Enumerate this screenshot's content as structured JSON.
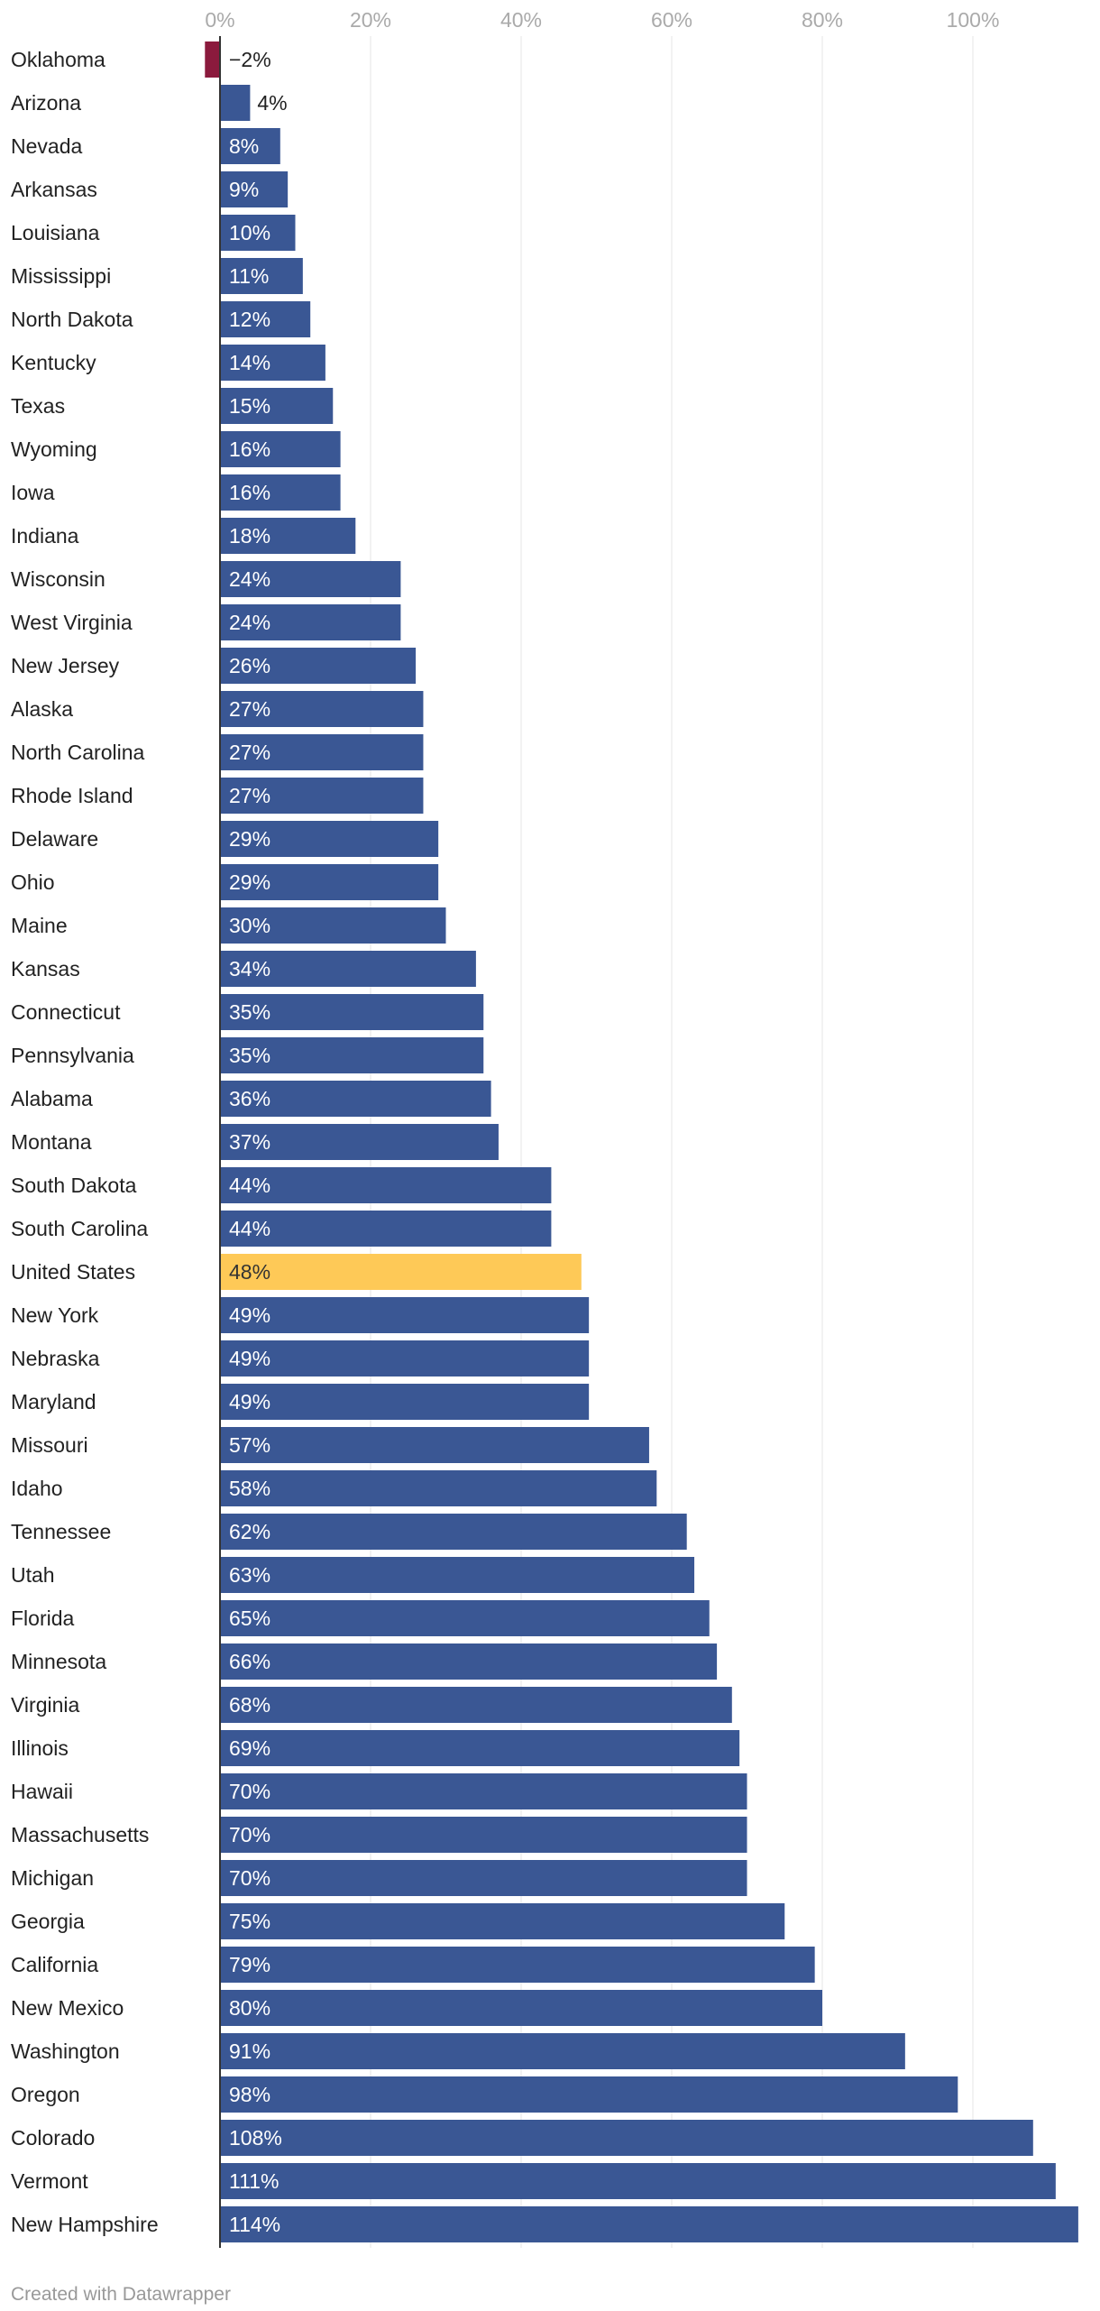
{
  "chart_data": {
    "type": "bar",
    "orientation": "horizontal",
    "title": "",
    "xlabel": "",
    "ylabel": "",
    "xlim": [
      -2,
      114
    ],
    "ticks": [
      {
        "value": 0,
        "label": "0%"
      },
      {
        "value": 20,
        "label": "20%"
      },
      {
        "value": 40,
        "label": "40%"
      },
      {
        "value": 60,
        "label": "60%"
      },
      {
        "value": 80,
        "label": "80%"
      },
      {
        "value": 100,
        "label": "100%"
      }
    ],
    "grid": true,
    "colors": {
      "positive": "#3a5794",
      "negative": "#8b1a3d",
      "highlight": "#fec957",
      "grid": "#e6e6e6",
      "axis": "#333333"
    },
    "bars": [
      {
        "category": "Oklahoma",
        "value": -2,
        "label": "−2%"
      },
      {
        "category": "Arizona",
        "value": 4,
        "label": "4%"
      },
      {
        "category": "Nevada",
        "value": 8,
        "label": "8%"
      },
      {
        "category": "Arkansas",
        "value": 9,
        "label": "9%"
      },
      {
        "category": "Louisiana",
        "value": 10,
        "label": "10%"
      },
      {
        "category": "Mississippi",
        "value": 11,
        "label": "11%"
      },
      {
        "category": "North Dakota",
        "value": 12,
        "label": "12%"
      },
      {
        "category": "Kentucky",
        "value": 14,
        "label": "14%"
      },
      {
        "category": "Texas",
        "value": 15,
        "label": "15%"
      },
      {
        "category": "Wyoming",
        "value": 16,
        "label": "16%"
      },
      {
        "category": "Iowa",
        "value": 16,
        "label": "16%"
      },
      {
        "category": "Indiana",
        "value": 18,
        "label": "18%"
      },
      {
        "category": "Wisconsin",
        "value": 24,
        "label": "24%"
      },
      {
        "category": "West Virginia",
        "value": 24,
        "label": "24%"
      },
      {
        "category": "New Jersey",
        "value": 26,
        "label": "26%"
      },
      {
        "category": "Alaska",
        "value": 27,
        "label": "27%"
      },
      {
        "category": "North Carolina",
        "value": 27,
        "label": "27%"
      },
      {
        "category": "Rhode Island",
        "value": 27,
        "label": "27%"
      },
      {
        "category": "Delaware",
        "value": 29,
        "label": "29%"
      },
      {
        "category": "Ohio",
        "value": 29,
        "label": "29%"
      },
      {
        "category": "Maine",
        "value": 30,
        "label": "30%"
      },
      {
        "category": "Kansas",
        "value": 34,
        "label": "34%"
      },
      {
        "category": "Connecticut",
        "value": 35,
        "label": "35%"
      },
      {
        "category": "Pennsylvania",
        "value": 35,
        "label": "35%"
      },
      {
        "category": "Alabama",
        "value": 36,
        "label": "36%"
      },
      {
        "category": "Montana",
        "value": 37,
        "label": "37%"
      },
      {
        "category": "South Dakota",
        "value": 44,
        "label": "44%"
      },
      {
        "category": "South Carolina",
        "value": 44,
        "label": "44%"
      },
      {
        "category": "United States",
        "value": 48,
        "label": "48%",
        "highlight": true
      },
      {
        "category": "New York",
        "value": 49,
        "label": "49%"
      },
      {
        "category": "Nebraska",
        "value": 49,
        "label": "49%"
      },
      {
        "category": "Maryland",
        "value": 49,
        "label": "49%"
      },
      {
        "category": "Missouri",
        "value": 57,
        "label": "57%"
      },
      {
        "category": "Idaho",
        "value": 58,
        "label": "58%"
      },
      {
        "category": "Tennessee",
        "value": 62,
        "label": "62%"
      },
      {
        "category": "Utah",
        "value": 63,
        "label": "63%"
      },
      {
        "category": "Florida",
        "value": 65,
        "label": "65%"
      },
      {
        "category": "Minnesota",
        "value": 66,
        "label": "66%"
      },
      {
        "category": "Virginia",
        "value": 68,
        "label": "68%"
      },
      {
        "category": "Illinois",
        "value": 69,
        "label": "69%"
      },
      {
        "category": "Hawaii",
        "value": 70,
        "label": "70%"
      },
      {
        "category": "Massachusetts",
        "value": 70,
        "label": "70%"
      },
      {
        "category": "Michigan",
        "value": 70,
        "label": "70%"
      },
      {
        "category": "Georgia",
        "value": 75,
        "label": "75%"
      },
      {
        "category": "California",
        "value": 79,
        "label": "79%"
      },
      {
        "category": "New Mexico",
        "value": 80,
        "label": "80%"
      },
      {
        "category": "Washington",
        "value": 91,
        "label": "91%"
      },
      {
        "category": "Oregon",
        "value": 98,
        "label": "98%"
      },
      {
        "category": "Colorado",
        "value": 108,
        "label": "108%"
      },
      {
        "category": "Vermont",
        "value": 111,
        "label": "111%"
      },
      {
        "category": "New Hampshire",
        "value": 114,
        "label": "114%"
      }
    ]
  },
  "footer": {
    "credit": "Created with Datawrapper"
  }
}
